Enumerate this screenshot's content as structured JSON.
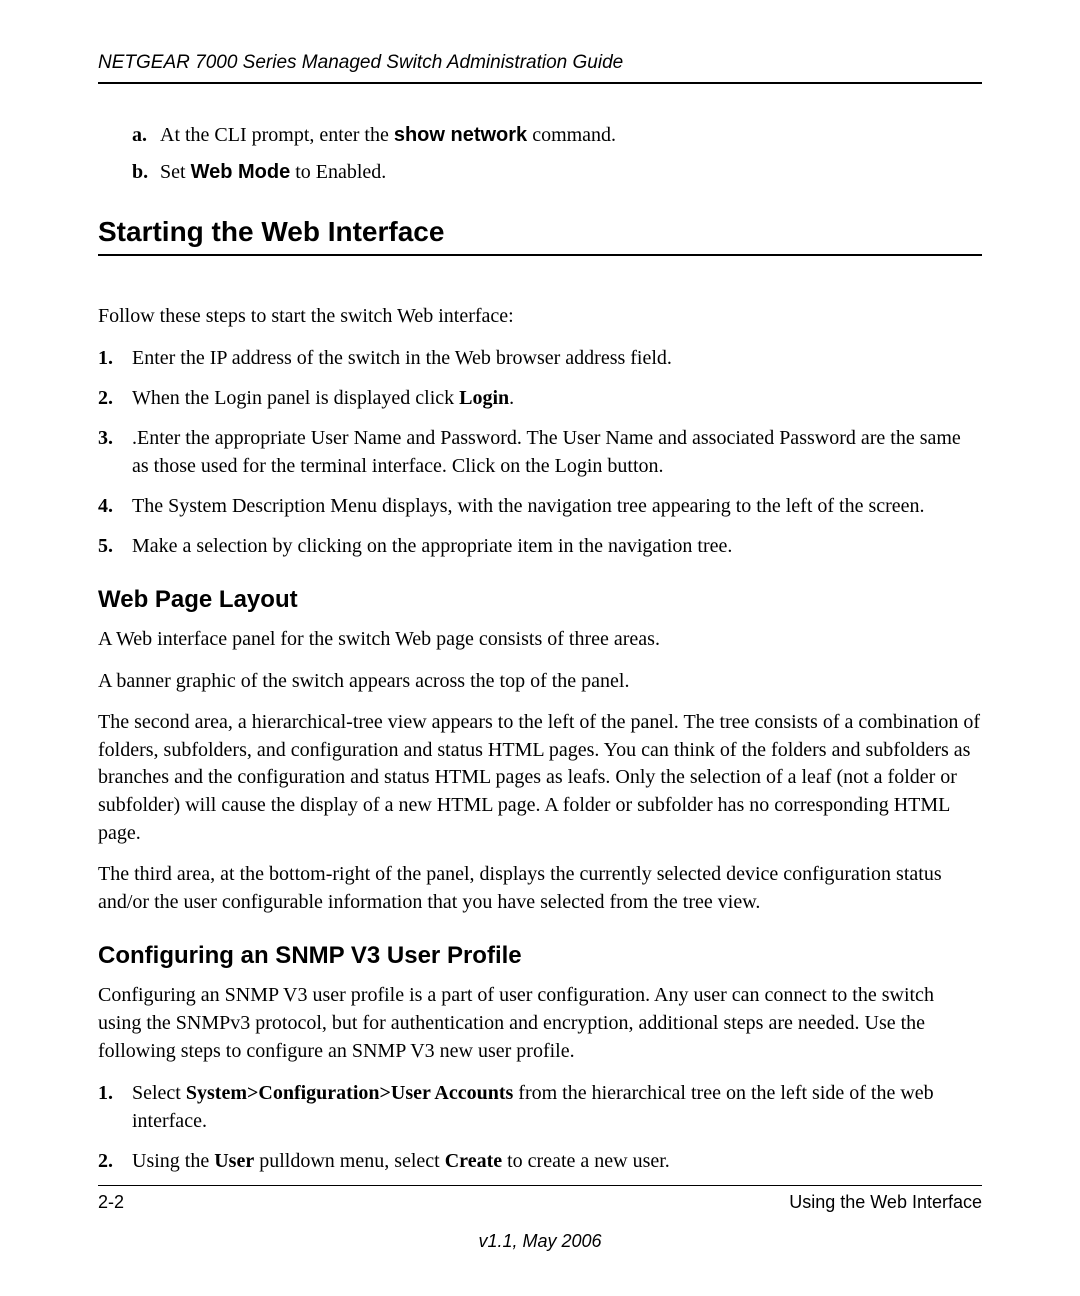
{
  "header": {
    "title": "NETGEAR 7000  Series Managed Switch Administration Guide"
  },
  "steps_ab": {
    "a_prefix": "At the CLI prompt, enter the ",
    "a_cmd": "show network",
    "a_suffix": " command.",
    "b_prefix": "Set ",
    "b_bold": "Web Mode",
    "b_suffix": " to Enabled."
  },
  "section1": {
    "title": "Starting the Web Interface",
    "intro": "Follow these steps to start the switch Web interface:",
    "items": {
      "i1": "Enter the IP address of the switch in the Web browser address field.",
      "i2_prefix": "When the Login panel is displayed click ",
      "i2_bold": "Login",
      "i2_suffix": ".",
      "i3": ".Enter the appropriate User Name and Password. The User Name and associated Password are the same as those used for the terminal interface. Click on the Login button.",
      "i4": "The System Description Menu displays, with the navigation tree appearing to the left of the screen.",
      "i5": "Make a selection by clicking on the appropriate item in the navigation tree."
    }
  },
  "section2": {
    "title": "Web Page Layout",
    "p1": "A Web interface panel for the switch Web page consists of three areas.",
    "p2": "A banner graphic of the switch appears across the top of the panel.",
    "p3": "The second area, a hierarchical-tree view appears to the left of the panel. The tree consists of a combination of folders, subfolders, and configuration and status HTML pages. You can think of the folders and subfolders as branches and the configuration and status HTML pages as leafs. Only the selection of a leaf (not a folder or subfolder) will cause the display of a new HTML page. A folder or subfolder has no corresponding HTML page.",
    "p4": "The third area, at the bottom-right of the panel, displays the currently selected device configuration status and/or the user configurable information that you have selected from the tree view."
  },
  "section3": {
    "title": "Configuring an SNMP V3 User Profile",
    "p1": "Configuring an SNMP V3 user profile is a part of user configuration. Any user can connect to the switch using the SNMPv3 protocol, but for authentication and encryption, additional steps are needed. Use the following steps to configure an SNMP V3 new user profile.",
    "items": {
      "i1_prefix": "Select ",
      "i1_bold": "System>Configuration>User Accounts",
      "i1_suffix": " from the hierarchical tree on the left side of the web interface.",
      "i2_a": "Using the ",
      "i2_b1": "User",
      "i2_b": " pulldown menu, select ",
      "i2_b2": "Create",
      "i2_c": " to create a new user."
    }
  },
  "footer": {
    "left": "2-2",
    "right": "Using the Web Interface",
    "version": "v1.1, May 2006"
  },
  "markers": {
    "a": "a.",
    "b": "b.",
    "n1": "1.",
    "n2": "2.",
    "n3": "3.",
    "n4": "4.",
    "n5": "5."
  }
}
